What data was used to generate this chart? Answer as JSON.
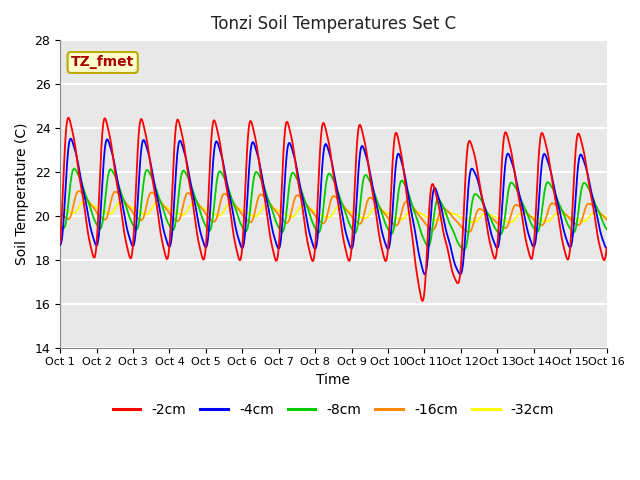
{
  "title": "Tonzi Soil Temperatures Set C",
  "xlabel": "Time",
  "ylabel": "Soil Temperature (C)",
  "xlim": [
    0,
    15
  ],
  "ylim": [
    14,
    28
  ],
  "yticks": [
    14,
    16,
    18,
    20,
    22,
    24,
    26,
    28
  ],
  "xtick_labels": [
    "Oct 1",
    "Oct 2",
    "Oct 3",
    "Oct 4",
    "Oct 5",
    "Oct 6",
    "Oct 7",
    "Oct 8",
    "Oct 9",
    "Oct 10",
    "Oct 11",
    "Oct 12",
    "Oct 13",
    "Oct 14",
    "Oct 15",
    "Oct 16"
  ],
  "annotation_text": "TZ_fmet",
  "annotation_box_color": "#ffffcc",
  "annotation_box_edge": "#bbaa00",
  "annotation_text_color": "#aa0000",
  "series_colors": [
    "#ff0000",
    "#0000ff",
    "#00cc00",
    "#ff8800",
    "#ffff00"
  ],
  "series_labels": [
    "-2cm",
    "-4cm",
    "-8cm",
    "-16cm",
    "-32cm"
  ],
  "plot_bg_color": "#e8e8e8",
  "plot_bg_light": "#f0f0f0",
  "grid_color": "#ffffff"
}
